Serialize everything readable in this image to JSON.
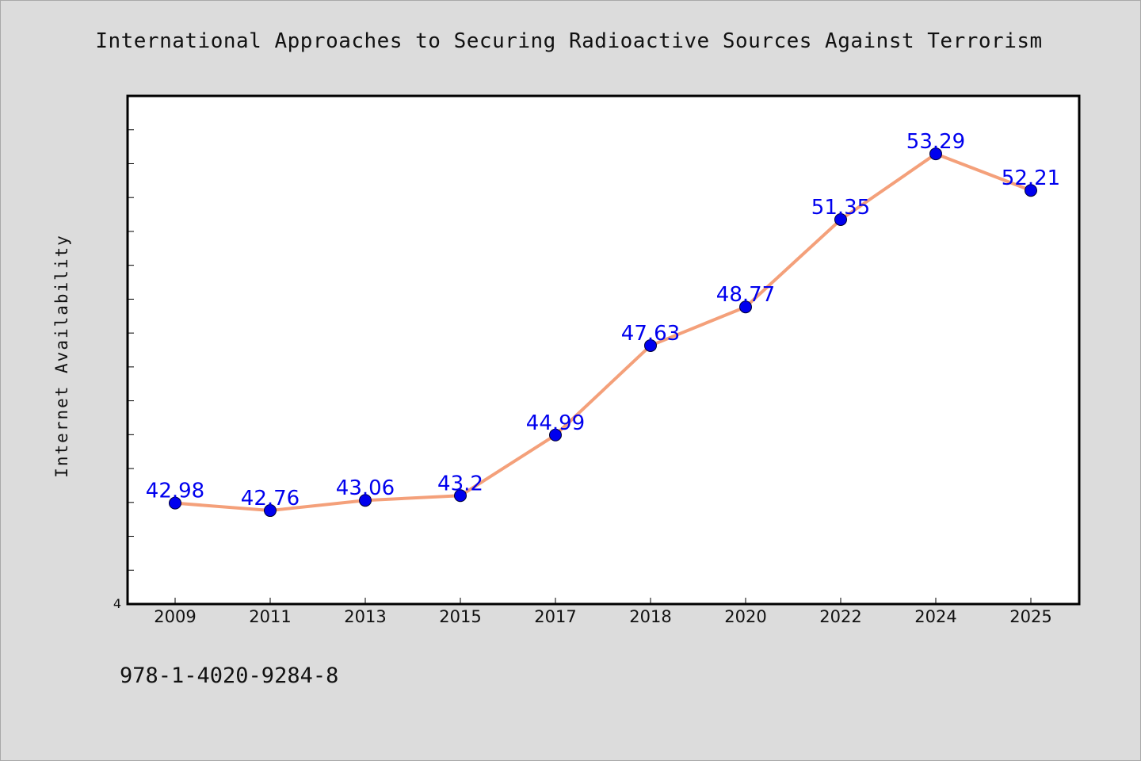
{
  "chart_data": {
    "type": "line",
    "title": "International Approaches to Securing Radioactive Sources Against Terrorism",
    "xlabel": "",
    "ylabel": "Internet Availability",
    "categories": [
      "2009",
      "2011",
      "2013",
      "2015",
      "2017",
      "2018",
      "2020",
      "2022",
      "2024",
      "2025"
    ],
    "series": [
      {
        "values": [
          42.98,
          42.76,
          43.06,
          43.2,
          44.99,
          47.63,
          48.77,
          51.35,
          53.29,
          52.21
        ],
        "data_labels": [
          "42.98",
          "42.76",
          "43.06",
          "43.2",
          "44.99",
          "47.63",
          "48.77",
          "51.35",
          "53.29",
          "52.21"
        ]
      }
    ],
    "ylim": [
      40,
      55
    ],
    "y_tick_labels": [
      "4"
    ],
    "grid": false,
    "line_color": "#f4a07a",
    "marker_color": "#0000ee",
    "label_color": "#0000ee"
  },
  "footer_code": "978-1-4020-9284-8"
}
